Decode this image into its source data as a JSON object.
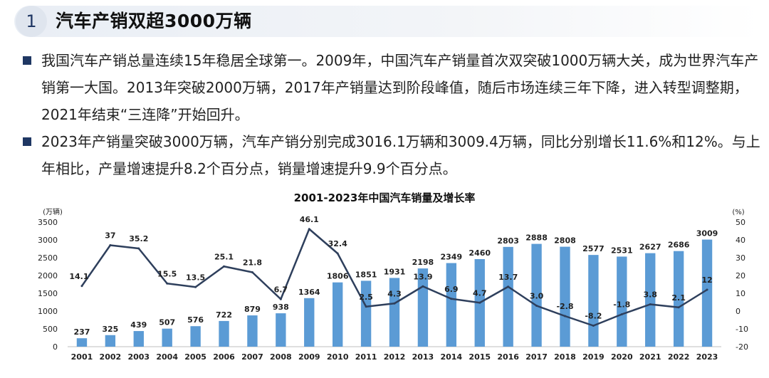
{
  "header": {
    "section_number": "1",
    "title": "汽车产销双超3000万辆"
  },
  "bullets": [
    "我国汽车产销总量连续15年稳居全球第一。2009年，中国汽车产销量首次双突破1000万辆大关，成为世界汽车产销第一大国。2013年突破2000万辆，2017年产销量达到阶段峰值，随后市场连续三年下降，进入转型调整期，2021年结束“三连降”开始回升。",
    "2023年产销量突破3000万辆，汽车产销分别完成3016.1万辆和3009.4万辆，同比分别增长11.6%和12%。与上年相比，产量增速提升8.2个百分点，销量增速提升9.9个百分点。"
  ],
  "colors": {
    "bar": "#5b9bd5",
    "line": "#2e3f5c",
    "accent": "#1f3763"
  },
  "chart_data": {
    "type": "bar",
    "title": "2001-2023年中国汽车销量及增长率",
    "left_unit": "(万辆)",
    "right_unit": "(%)",
    "categories": [
      "2001",
      "2002",
      "2003",
      "2004",
      "2005",
      "2006",
      "2007",
      "2008",
      "2009",
      "2010",
      "2011",
      "2012",
      "2013",
      "2014",
      "2015",
      "2016",
      "2017",
      "2018",
      "2019",
      "2020",
      "2021",
      "2022",
      "2023"
    ],
    "series": [
      {
        "name": "销量",
        "type": "bar",
        "axis": "left",
        "values": [
          237,
          325,
          439,
          507,
          576,
          722,
          879,
          938,
          1364,
          1806,
          1851,
          1931,
          2198,
          2349,
          2460,
          2803,
          2888,
          2808,
          2577,
          2531,
          2627,
          2686,
          3009
        ]
      },
      {
        "name": "增长率",
        "type": "line",
        "axis": "right",
        "values": [
          14.1,
          37,
          35.2,
          15.5,
          13.5,
          25.1,
          21.8,
          6.7,
          46.1,
          32.4,
          2.5,
          4.3,
          13.9,
          6.9,
          4.7,
          13.7,
          3.0,
          -2.8,
          -8.2,
          -1.8,
          3.8,
          2.1,
          12
        ]
      }
    ],
    "bar_labels": [
      "237",
      "325",
      "439",
      "507",
      "576",
      "722",
      "879",
      "938",
      "1364",
      "1806",
      "1851",
      "1931",
      "2198",
      "2349",
      "2460",
      "2803",
      "2888",
      "2808",
      "2577",
      "2531",
      "2627",
      "2686",
      "3009"
    ],
    "line_labels": [
      "14.1",
      "37",
      "35.2",
      "15.5",
      "13.5",
      "25.1",
      "21.8",
      "6.7",
      "46.1",
      "32.4",
      "2.5",
      "4.3",
      "13.9",
      "6.9",
      "4.7",
      "13.7",
      "3.0",
      "-2.8",
      "-8.2",
      "-1.8",
      "3.8",
      "2.1",
      "12"
    ],
    "left_ylim": [
      0,
      3500
    ],
    "left_ticks": [
      "0",
      "500",
      "1000",
      "1500",
      "2000",
      "2500",
      "3000",
      "3500"
    ],
    "right_ylim": [
      -20,
      50
    ],
    "right_ticks": [
      "-20",
      "-10",
      "0",
      "10",
      "20",
      "30",
      "40",
      "50"
    ]
  }
}
